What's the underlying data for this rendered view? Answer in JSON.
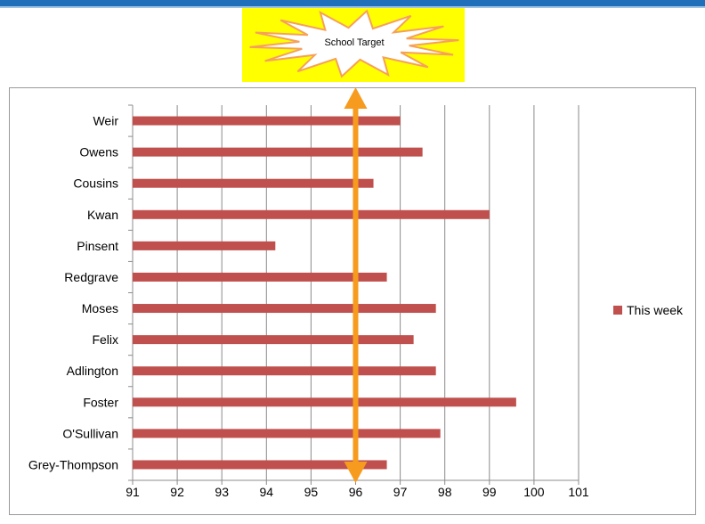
{
  "callout": {
    "label": "School Target"
  },
  "chart_data": {
    "type": "bar",
    "orientation": "horizontal",
    "categories": [
      "Weir",
      "Owens",
      "Cousins",
      "Kwan",
      "Pinsent",
      "Redgrave",
      "Moses",
      "Felix",
      "Adlington",
      "Foster",
      "O'Sullivan",
      "Grey-Thompson"
    ],
    "series": [
      {
        "name": "This week",
        "values": [
          97.0,
          97.5,
          96.4,
          99.0,
          94.2,
          96.7,
          97.8,
          97.3,
          97.8,
          99.6,
          97.9,
          96.7
        ]
      }
    ],
    "xlim": [
      91,
      101
    ],
    "xticks": [
      "91",
      "92",
      "93",
      "94",
      "95",
      "96",
      "97",
      "98",
      "99",
      "100",
      "101"
    ],
    "target": 96,
    "grid": "vertical",
    "legend": "right",
    "colors": {
      "bar": "#c0504d",
      "target_arrow": "#f79b1e",
      "callout_bg": "#ffff00"
    }
  }
}
